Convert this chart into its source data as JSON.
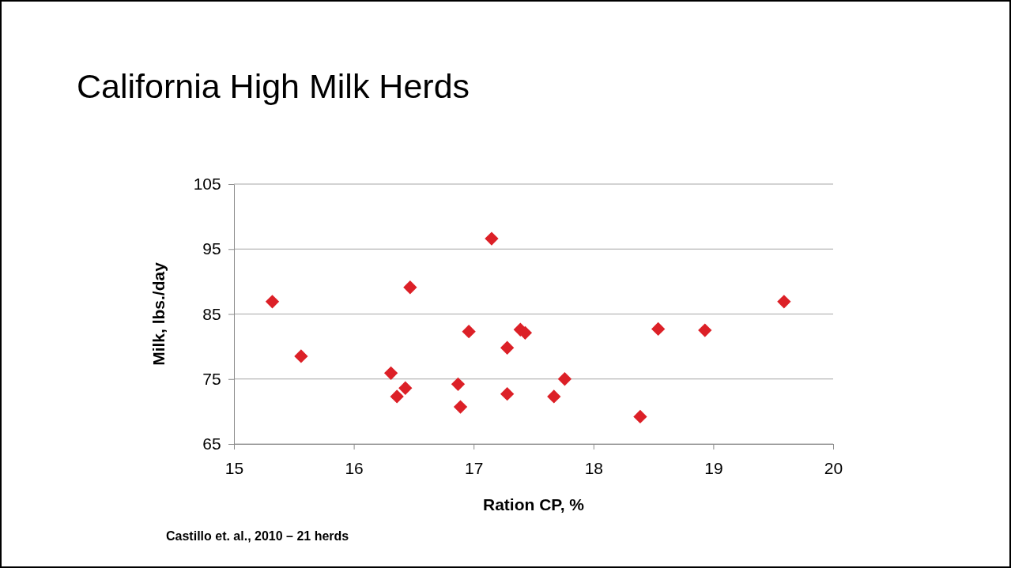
{
  "chart_data": {
    "type": "scatter",
    "title": "California High Milk Herds",
    "xlabel": "Ration CP, %",
    "ylabel": "Milk, lbs./day",
    "annotations": [
      "Castillo et. al., 2010 – 21 herds"
    ],
    "x": [
      15.32,
      15.56,
      16.31,
      16.36,
      16.43,
      16.47,
      16.87,
      16.89,
      16.96,
      17.15,
      17.28,
      17.28,
      17.39,
      17.43,
      17.67,
      17.76,
      18.39,
      18.54,
      18.93,
      19.59
    ],
    "series": [
      {
        "color": "#dc2027",
        "values": [
          86.9,
          78.5,
          75.9,
          72.3,
          73.6,
          89.1,
          74.2,
          70.7,
          82.3,
          96.6,
          79.8,
          72.7,
          82.6,
          82.1,
          72.3,
          75.0,
          69.2,
          82.7,
          82.5,
          86.9
        ]
      }
    ],
    "xlim": [
      15,
      20
    ],
    "xticks": [
      15,
      16,
      17,
      18,
      19,
      20
    ],
    "ylim": [
      65,
      105
    ],
    "yticks": [
      65,
      75,
      85,
      95,
      105
    ],
    "grid": "y",
    "marker": "diamond"
  }
}
